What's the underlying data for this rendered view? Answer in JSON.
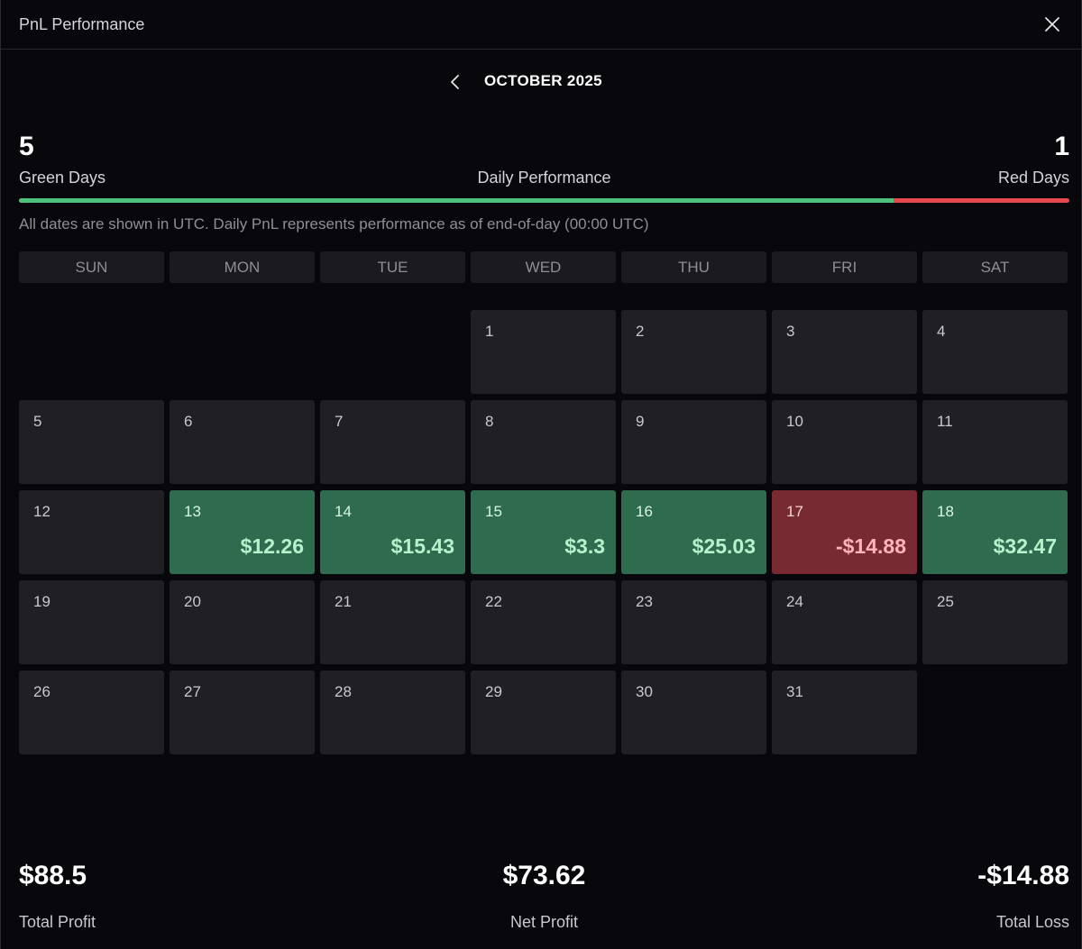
{
  "header": {
    "title": "PnL Performance"
  },
  "nav": {
    "month": "OCTOBER 2025"
  },
  "stats": {
    "green_count": "5",
    "green_label": "Green Days",
    "performance_label": "Daily Performance",
    "red_count": "1",
    "red_label": "Red Days",
    "green_fraction": 0.833
  },
  "note": "All dates are shown in UTC. Daily PnL represents performance as of end-of-day (00:00 UTC)",
  "weekdays": [
    "SUN",
    "MON",
    "TUE",
    "WED",
    "THU",
    "FRI",
    "SAT"
  ],
  "calendar": {
    "leading_blanks": 3,
    "days": [
      {
        "num": "1",
        "pnl": "",
        "status": "none"
      },
      {
        "num": "2",
        "pnl": "",
        "status": "none"
      },
      {
        "num": "3",
        "pnl": "",
        "status": "none"
      },
      {
        "num": "4",
        "pnl": "",
        "status": "none"
      },
      {
        "num": "5",
        "pnl": "",
        "status": "none"
      },
      {
        "num": "6",
        "pnl": "",
        "status": "none"
      },
      {
        "num": "7",
        "pnl": "",
        "status": "none"
      },
      {
        "num": "8",
        "pnl": "",
        "status": "none"
      },
      {
        "num": "9",
        "pnl": "",
        "status": "none"
      },
      {
        "num": "10",
        "pnl": "",
        "status": "none"
      },
      {
        "num": "11",
        "pnl": "",
        "status": "none"
      },
      {
        "num": "12",
        "pnl": "",
        "status": "none"
      },
      {
        "num": "13",
        "pnl": "$12.26",
        "status": "green"
      },
      {
        "num": "14",
        "pnl": "$15.43",
        "status": "green"
      },
      {
        "num": "15",
        "pnl": "$3.3",
        "status": "green"
      },
      {
        "num": "16",
        "pnl": "$25.03",
        "status": "green"
      },
      {
        "num": "17",
        "pnl": "-$14.88",
        "status": "red"
      },
      {
        "num": "18",
        "pnl": "$32.47",
        "status": "green"
      },
      {
        "num": "19",
        "pnl": "",
        "status": "none"
      },
      {
        "num": "20",
        "pnl": "",
        "status": "none"
      },
      {
        "num": "21",
        "pnl": "",
        "status": "none"
      },
      {
        "num": "22",
        "pnl": "",
        "status": "none"
      },
      {
        "num": "23",
        "pnl": "",
        "status": "none"
      },
      {
        "num": "24",
        "pnl": "",
        "status": "none"
      },
      {
        "num": "25",
        "pnl": "",
        "status": "none"
      },
      {
        "num": "26",
        "pnl": "",
        "status": "none"
      },
      {
        "num": "27",
        "pnl": "",
        "status": "none"
      },
      {
        "num": "28",
        "pnl": "",
        "status": "none"
      },
      {
        "num": "29",
        "pnl": "",
        "status": "none"
      },
      {
        "num": "30",
        "pnl": "",
        "status": "none"
      },
      {
        "num": "31",
        "pnl": "",
        "status": "none"
      }
    ]
  },
  "summary": {
    "total_profit": "$88.5",
    "total_profit_label": "Total Profit",
    "net_profit": "$73.62",
    "net_profit_label": "Net Profit",
    "total_loss": "-$14.88",
    "total_loss_label": "Total Loss"
  },
  "colors": {
    "green": "#4ec27d",
    "red": "#e5484d",
    "green_cell": "#2f6b4f",
    "red_cell": "#782a33"
  }
}
